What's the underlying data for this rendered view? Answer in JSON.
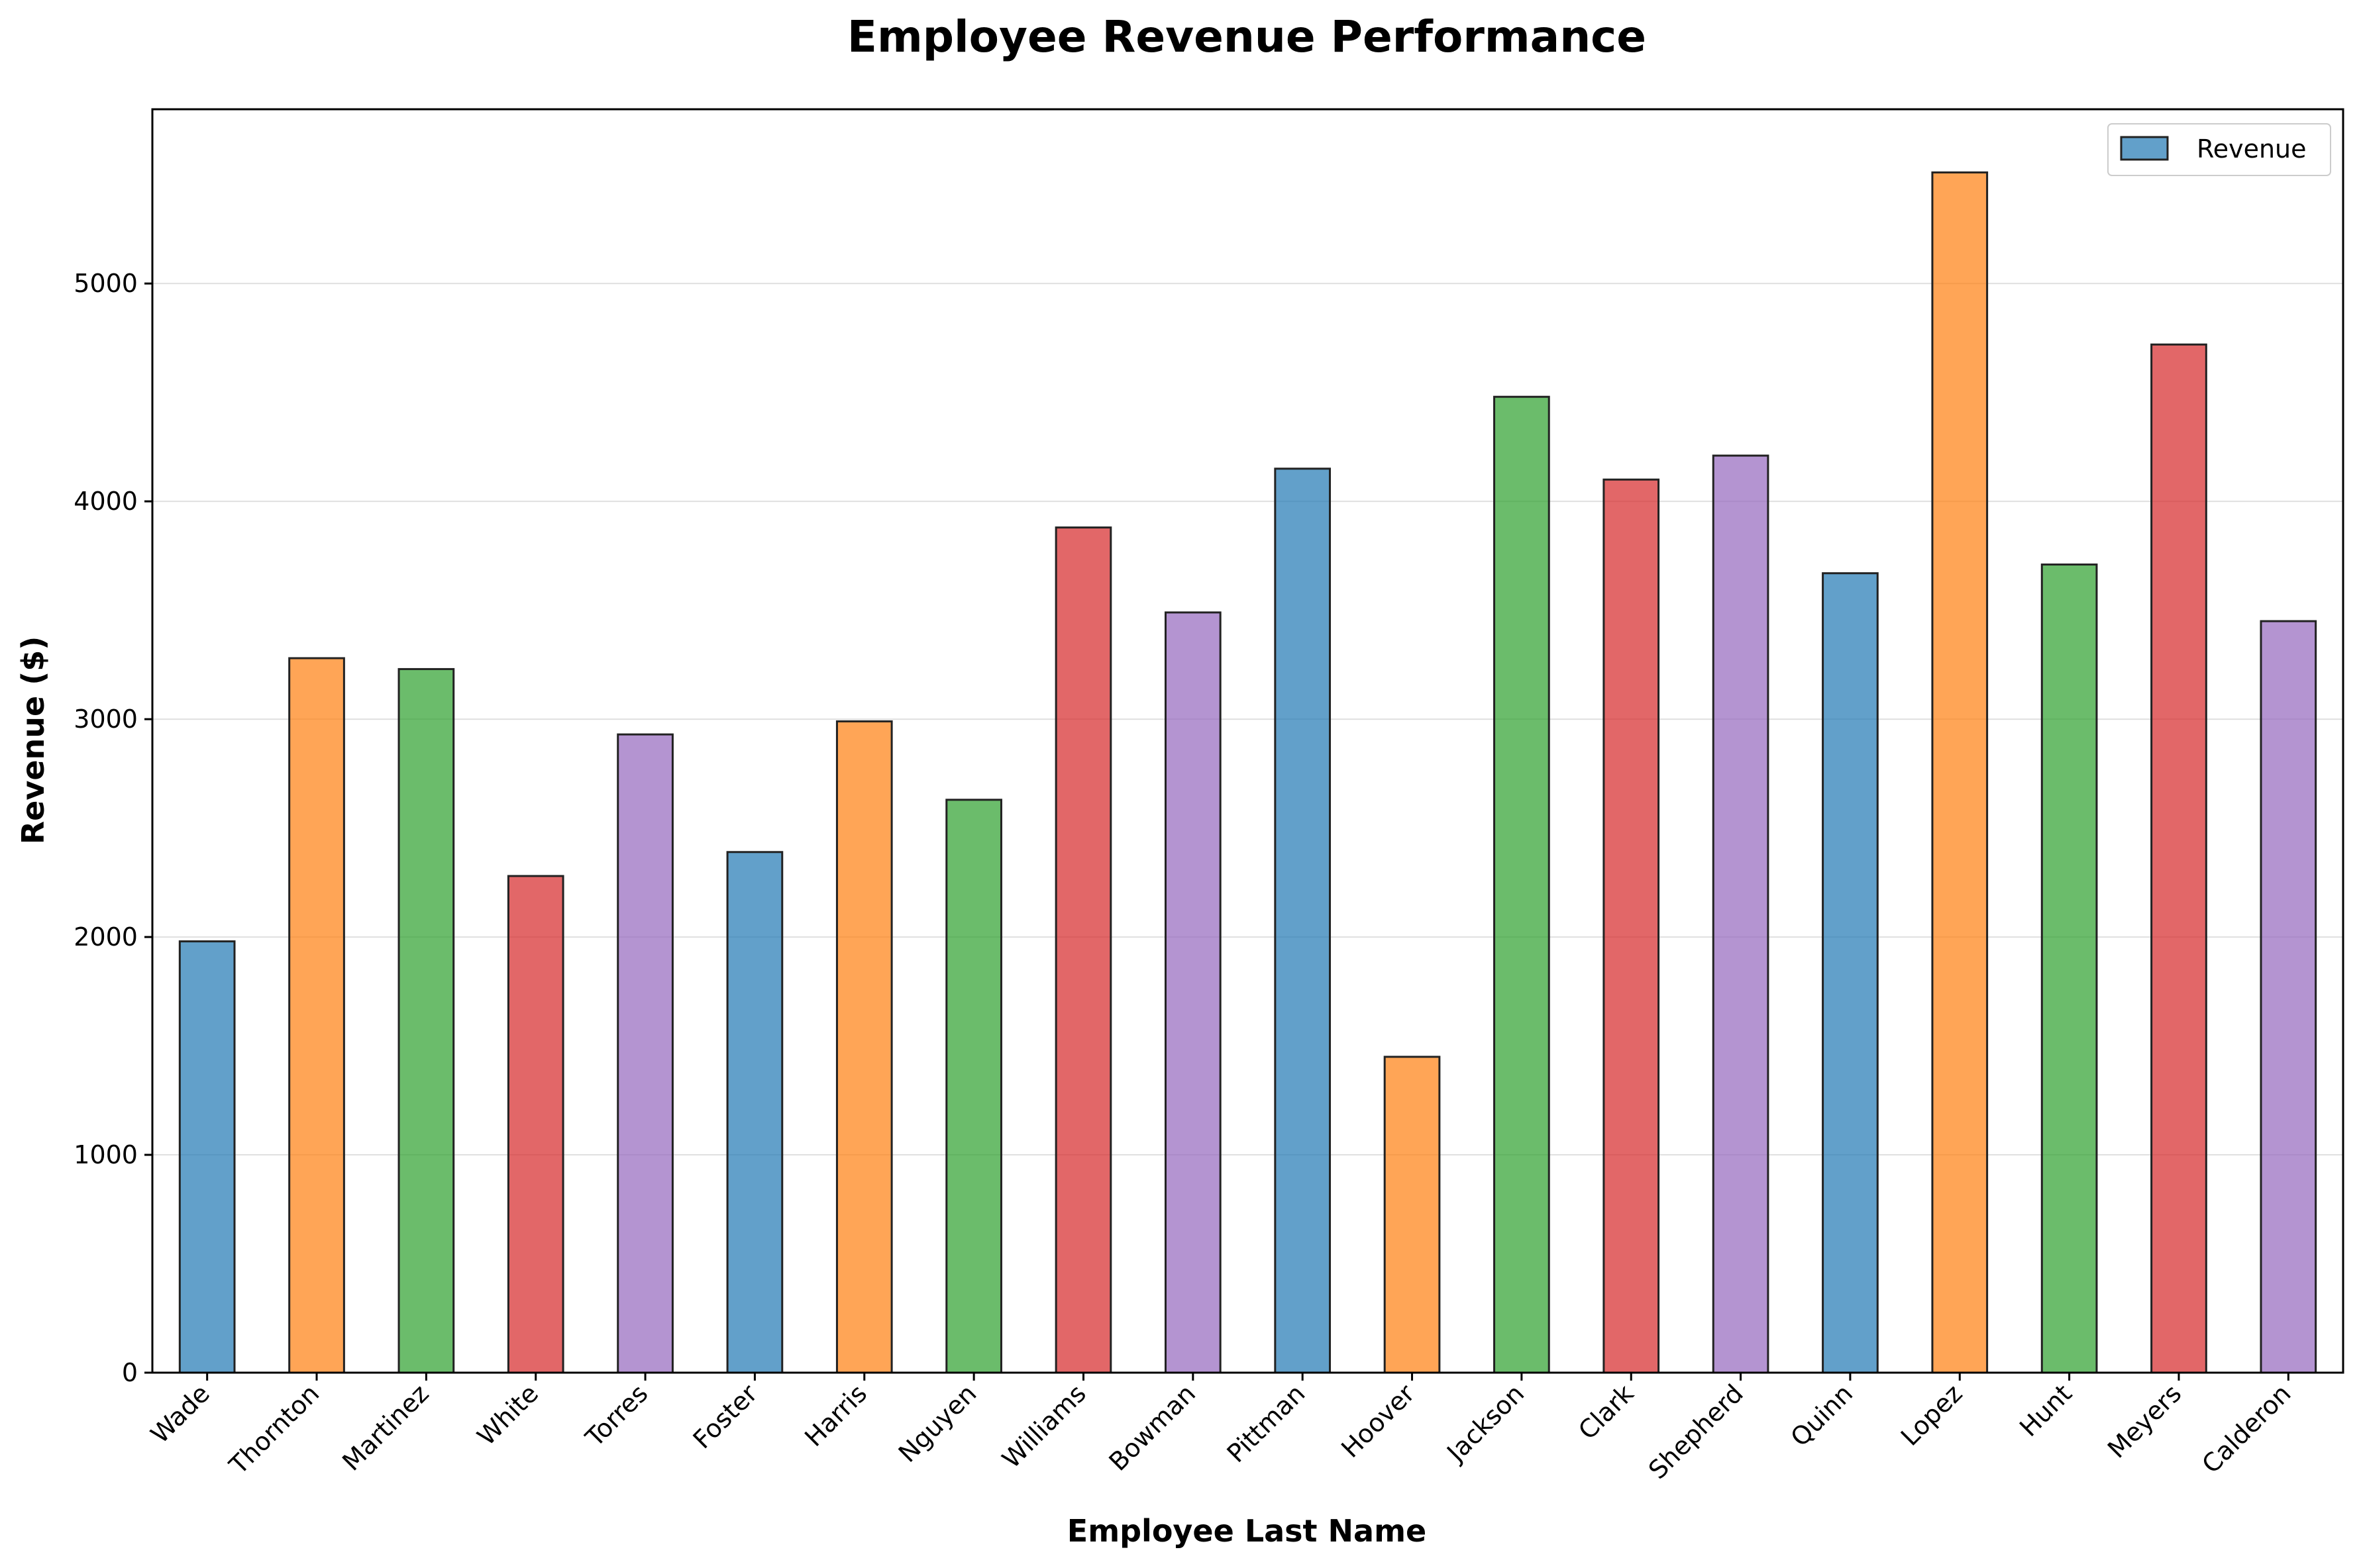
{
  "chart_data": {
    "type": "bar",
    "title": "Employee Revenue Performance",
    "xlabel": "Employee Last Name",
    "ylabel": "Revenue ($)",
    "ylim": [
      0,
      5800
    ],
    "yticks": [
      0,
      1000,
      2000,
      3000,
      4000,
      5000
    ],
    "grid": "y",
    "legend_position": "top-right",
    "categories": [
      "Wade",
      "Thornton",
      "Martinez",
      "White",
      "Torres",
      "Foster",
      "Harris",
      "Nguyen",
      "Williams",
      "Bowman",
      "Pittman",
      "Hoover",
      "Jackson",
      "Clark",
      "Shepherd",
      "Quinn",
      "Lopez",
      "Hunt",
      "Meyers",
      "Calderon"
    ],
    "series": [
      {
        "name": "Revenue",
        "values": [
          1980,
          3280,
          3230,
          2280,
          2930,
          2390,
          2990,
          2630,
          3880,
          3490,
          4150,
          1450,
          4480,
          4100,
          4210,
          3670,
          5510,
          3710,
          4720,
          3450
        ]
      }
    ],
    "bar_colors": [
      "#1f77b4",
      "#ff7f0e",
      "#2ca02c",
      "#d62728",
      "#9467bd",
      "#1f77b4",
      "#ff7f0e",
      "#2ca02c",
      "#d62728",
      "#9467bd",
      "#1f77b4",
      "#ff7f0e",
      "#2ca02c",
      "#d62728",
      "#9467bd",
      "#1f77b4",
      "#ff7f0e",
      "#2ca02c",
      "#d62728",
      "#9467bd"
    ],
    "legend_color": "#1f77b4",
    "edge_color": "#222222"
  }
}
